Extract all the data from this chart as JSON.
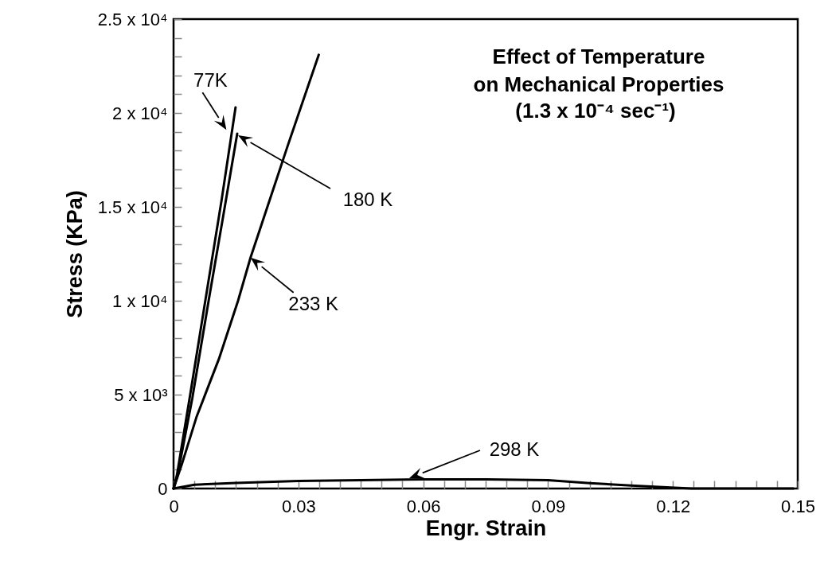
{
  "chart_data": {
    "type": "line",
    "title": "Effect of Temperature on Mechanical Properties",
    "subtitle": "(1.3 x 10⁻⁴ sec⁻¹)",
    "xlabel": "Engr. Strain",
    "ylabel": "Stress (KPa)",
    "xlim": [
      0,
      0.15
    ],
    "ylim": [
      0,
      25000
    ],
    "xticks": [
      0,
      {
        "value": 0.005,
        "label": null
      },
      {
        "value": 0.01,
        "label": null
      },
      {
        "value": 0.015,
        "label": null
      },
      {
        "value": 0.02,
        "label": null
      },
      {
        "value": 0.025,
        "label": null
      },
      0.03,
      {
        "value": 0.035,
        "label": null
      },
      {
        "value": 0.04,
        "label": null
      },
      {
        "value": 0.045,
        "label": null
      },
      {
        "value": 0.05,
        "label": null
      },
      {
        "value": 0.055,
        "label": null
      },
      0.06,
      {
        "value": 0.065,
        "label": null
      },
      {
        "value": 0.07,
        "label": null
      },
      {
        "value": 0.075,
        "label": null
      },
      {
        "value": 0.08,
        "label": null
      },
      {
        "value": 0.085,
        "label": null
      },
      0.09,
      {
        "value": 0.095,
        "label": null
      },
      {
        "value": 0.1,
        "label": null
      },
      {
        "value": 0.105,
        "label": null
      },
      {
        "value": 0.11,
        "label": null
      },
      {
        "value": 0.115,
        "label": null
      },
      0.12,
      {
        "value": 0.125,
        "label": null
      },
      {
        "value": 0.13,
        "label": null
      },
      {
        "value": 0.135,
        "label": null
      },
      {
        "value": 0.14,
        "label": null
      },
      {
        "value": 0.145,
        "label": null
      },
      0.15
    ],
    "yticks": [
      0,
      {
        "value": 1000,
        "label": null
      },
      {
        "value": 2000,
        "label": null
      },
      {
        "value": 3000,
        "label": null
      },
      {
        "value": 4000,
        "label": null
      },
      {
        "value": 5000,
        "label": "5 x 10³"
      },
      {
        "value": 6000,
        "label": null
      },
      {
        "value": 7000,
        "label": null
      },
      {
        "value": 8000,
        "label": null
      },
      {
        "value": 9000,
        "label": null
      },
      {
        "value": 10000,
        "label": "1 x 10⁴"
      },
      {
        "value": 11000,
        "label": null
      },
      {
        "value": 12000,
        "label": null
      },
      {
        "value": 13000,
        "label": null
      },
      {
        "value": 14000,
        "label": null
      },
      {
        "value": 15000,
        "label": "1.5 x 10⁴"
      },
      {
        "value": 16000,
        "label": null
      },
      {
        "value": 17000,
        "label": null
      },
      {
        "value": 18000,
        "label": null
      },
      {
        "value": 19000,
        "label": null
      },
      {
        "value": 20000,
        "label": "2 x 10⁴"
      },
      {
        "value": 21000,
        "label": null
      },
      {
        "value": 22000,
        "label": null
      },
      {
        "value": 23000,
        "label": null
      },
      {
        "value": 24000,
        "label": null
      },
      {
        "value": 25000,
        "label": "2.5 x 10⁴"
      }
    ],
    "grid": false,
    "legend": false,
    "marker": "none",
    "line_style": "solid",
    "series": [
      {
        "color": "#000000",
        "x": [
          0,
          0.0008,
          0.004,
          0.0077,
          0.0115,
          0.0149
        ],
        "values": [
          0,
          700,
          5000,
          10100,
          15300,
          20300
        ]
      },
      {
        "color": "#000000",
        "x": [
          0,
          0.0009,
          0.0045,
          0.0085,
          0.012,
          0.0153
        ],
        "values": [
          0,
          650,
          4800,
          10100,
          14600,
          18900
        ]
      },
      {
        "color": "#000000",
        "x": [
          0,
          0.002,
          0.0055,
          0.0109,
          0.0155,
          0.0185,
          0.0206,
          0.0275,
          0.0349
        ],
        "values": [
          0,
          1300,
          3800,
          6900,
          10000,
          12300,
          13700,
          18300,
          23100
        ]
      },
      {
        "color": "#000000",
        "x": [
          0,
          0.005,
          0.015,
          0.03,
          0.045,
          0.06,
          0.075,
          0.09,
          0.1,
          0.11,
          0.1195,
          0.1245,
          0.149
        ],
        "values": [
          0,
          200,
          300,
          400,
          450,
          490,
          490,
          450,
          290,
          160,
          50,
          0,
          0
        ]
      }
    ],
    "annotations": [
      {
        "text": "77K",
        "x": 0.0127,
        "y": 19100
      },
      "180 K",
      {
        "text": "233 K",
        "x": 0.0185,
        "y": 12300
      },
      "298 K"
    ]
  }
}
